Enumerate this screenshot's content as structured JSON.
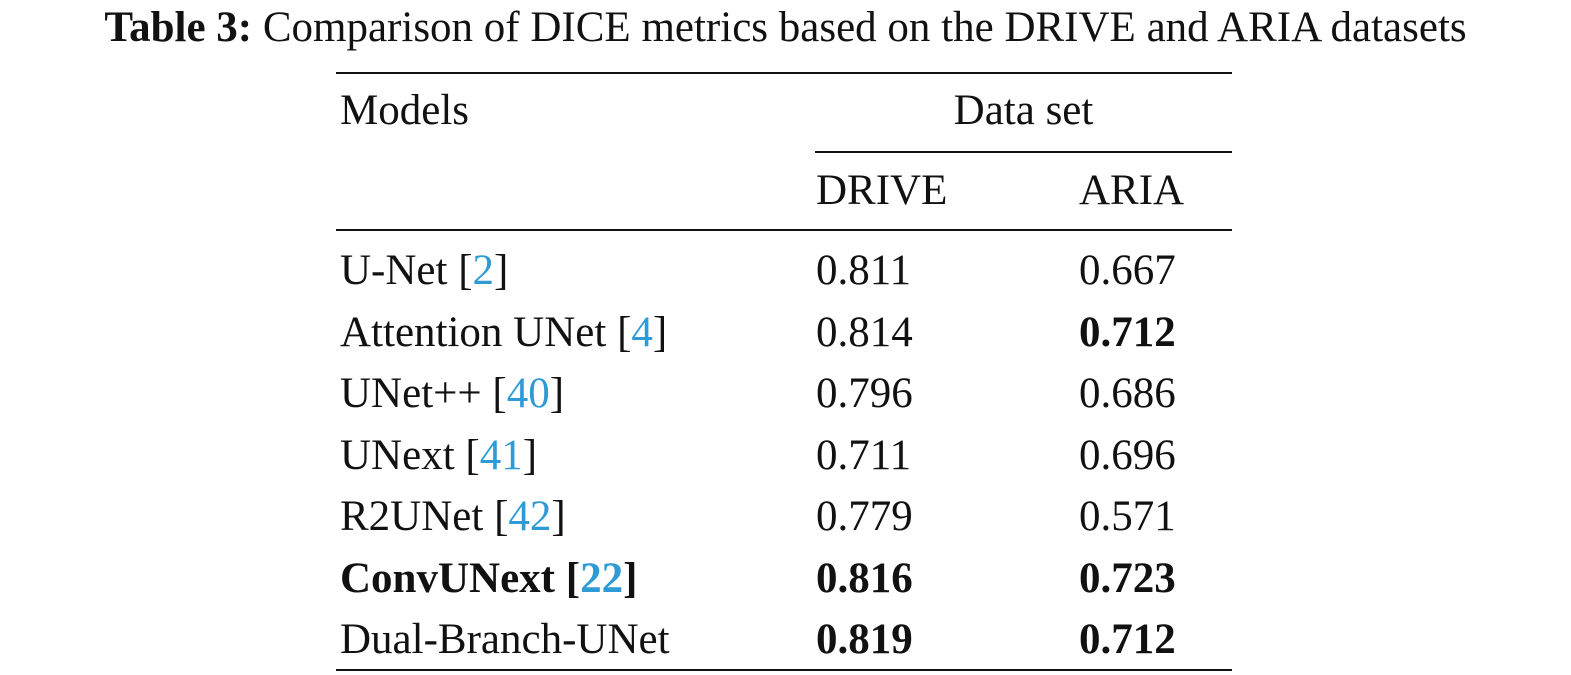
{
  "caption": {
    "label": "Table 3:",
    "text": "Comparison of DICE metrics based on the DRIVE and ARIA datasets"
  },
  "header": {
    "models": "Models",
    "group": "Data set",
    "col1": "DRIVE",
    "col2": "ARIA"
  },
  "rows": [
    {
      "model": "U-Net",
      "ref": "2",
      "drive": "0.811",
      "aria": "0.667",
      "model_bold": false,
      "drive_bold": false,
      "aria_bold": false
    },
    {
      "model": "Attention UNet",
      "ref": "4",
      "drive": "0.814",
      "aria": "0.712",
      "model_bold": false,
      "drive_bold": false,
      "aria_bold": true
    },
    {
      "model": "UNet++",
      "ref": "40",
      "drive": "0.796",
      "aria": "0.686",
      "model_bold": false,
      "drive_bold": false,
      "aria_bold": false
    },
    {
      "model": "UNext",
      "ref": "41",
      "drive": "0.711",
      "aria": "0.696",
      "model_bold": false,
      "drive_bold": false,
      "aria_bold": false
    },
    {
      "model": "R2UNet",
      "ref": "42",
      "drive": "0.779",
      "aria": "0.571",
      "model_bold": false,
      "drive_bold": false,
      "aria_bold": false
    },
    {
      "model": "ConvUNext",
      "ref": "22",
      "drive": "0.816",
      "aria": "0.723",
      "model_bold": true,
      "drive_bold": true,
      "aria_bold": true
    },
    {
      "model": "Dual-Branch-UNet",
      "ref": "",
      "drive": "0.819",
      "aria": "0.712",
      "model_bold": false,
      "drive_bold": true,
      "aria_bold": true
    }
  ],
  "colors": {
    "citation": "#2e9bd6",
    "text": "#111111"
  }
}
